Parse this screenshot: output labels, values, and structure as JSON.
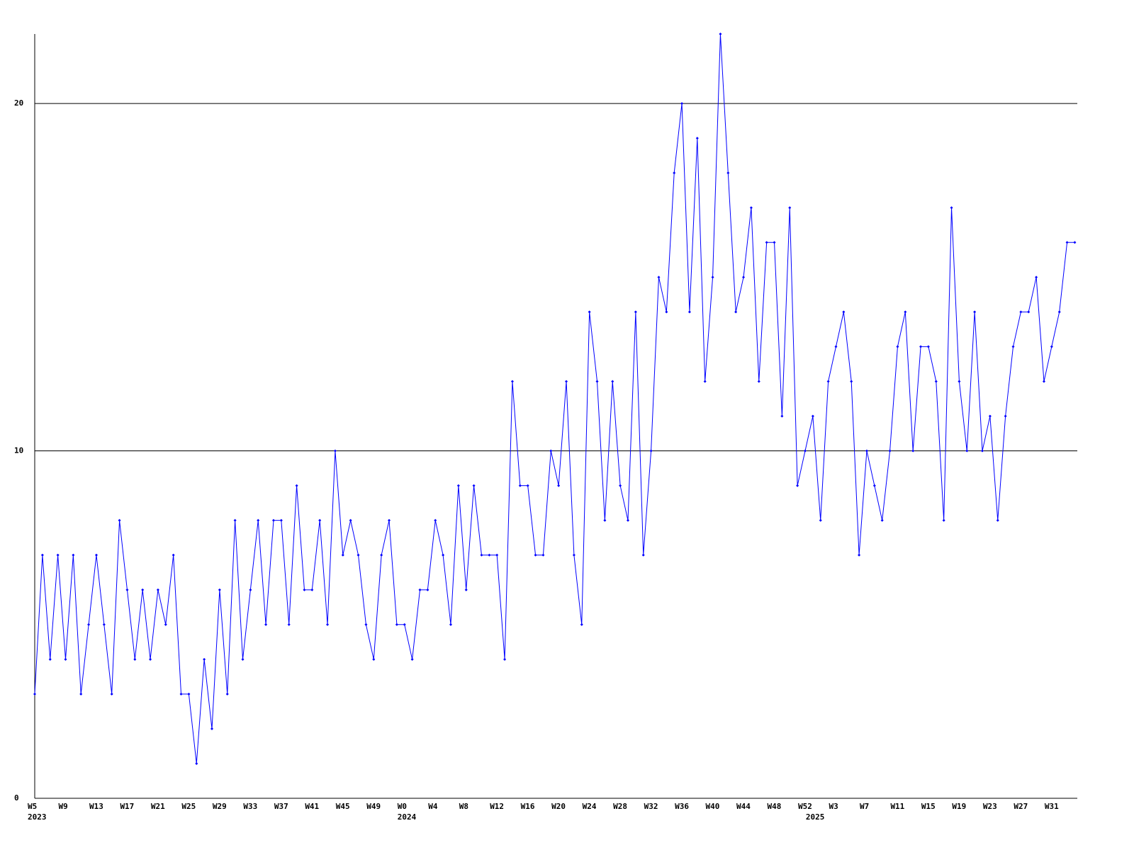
{
  "chart_data": {
    "type": "line",
    "categories": [
      "W5",
      null,
      null,
      null,
      "W9",
      null,
      null,
      null,
      "W13",
      null,
      null,
      null,
      "W17",
      null,
      null,
      null,
      "W21",
      null,
      null,
      null,
      "W25",
      null,
      null,
      null,
      "W29",
      null,
      null,
      null,
      "W33",
      null,
      null,
      null,
      "W37",
      null,
      null,
      null,
      "W41",
      null,
      null,
      null,
      "W45",
      null,
      null,
      null,
      "W49",
      null,
      null,
      null,
      "W0",
      null,
      null,
      null,
      "W4",
      null,
      null,
      null,
      "W8",
      null,
      null,
      null,
      "W12",
      null,
      null,
      null,
      "W16",
      null,
      null,
      null,
      "W20",
      null,
      null,
      null,
      "W24",
      null,
      null,
      null,
      "W28",
      null,
      null,
      null,
      "W32",
      null,
      null,
      null,
      "W36",
      null,
      null,
      null,
      "W40",
      null,
      null,
      null,
      "W44",
      null,
      null,
      null,
      "W48",
      null,
      null,
      null,
      "W52",
      null,
      null,
      null,
      "W3",
      null,
      null,
      null,
      "W7",
      null,
      null,
      null,
      "W11",
      null,
      null,
      null,
      "W15",
      null,
      null,
      null,
      "W19",
      null,
      null,
      null,
      "W23",
      null,
      null,
      null,
      "W27",
      null,
      null,
      null,
      "W31",
      null,
      null,
      null
    ],
    "year_labels": [
      {
        "category": 0,
        "label": "2023"
      },
      {
        "category": 48,
        "label": "2024"
      },
      {
        "category": 101,
        "label": "2025"
      }
    ],
    "series": [
      {
        "color": "#0000ff",
        "values": [
          3,
          7,
          4,
          7,
          4,
          7,
          3,
          5,
          7,
          5,
          3,
          8,
          6,
          4,
          6,
          4,
          6,
          5,
          7,
          3,
          3,
          1,
          4,
          2,
          6,
          3,
          8,
          4,
          6,
          8,
          5,
          8,
          8,
          5,
          9,
          6,
          6,
          8,
          5,
          10,
          7,
          8,
          7,
          5,
          4,
          7,
          8,
          5,
          5,
          4,
          6,
          6,
          8,
          7,
          5,
          9,
          6,
          9,
          7,
          7,
          7,
          4,
          12,
          9,
          9,
          7,
          7,
          10,
          9,
          12,
          7,
          5,
          14,
          12,
          8,
          12,
          9,
          8,
          14,
          7,
          10,
          15,
          14,
          18,
          20,
          14,
          19,
          12,
          15,
          22,
          18,
          14,
          15,
          17,
          12,
          16,
          16,
          11,
          17,
          9,
          10,
          11,
          8,
          12,
          13,
          14,
          12,
          7,
          10,
          9,
          8,
          10,
          13,
          14,
          10,
          13,
          13,
          12,
          8,
          17,
          12,
          10,
          14,
          10,
          11,
          8,
          11,
          13,
          14,
          14,
          15,
          12,
          13,
          14,
          16,
          16
        ]
      }
    ],
    "ylim": [
      0,
      22
    ],
    "yticks": [
      0,
      10,
      20
    ],
    "grid": true
  }
}
